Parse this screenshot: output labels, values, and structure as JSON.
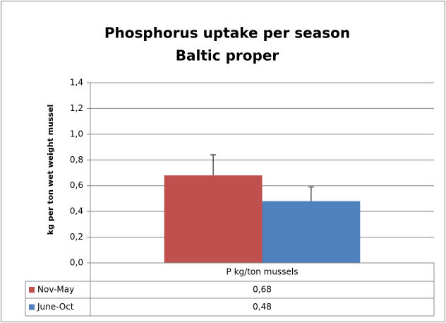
{
  "chart_data": {
    "type": "bar",
    "title": "Phosphorus  uptake per season",
    "subtitle": "Baltic proper",
    "y_label": "kg per ton wet weight mussel",
    "categories": [
      "P kg/ton mussels"
    ],
    "series": [
      {
        "name": "Nov-May",
        "color": "#c0504d",
        "values": [
          0.68
        ],
        "value_labels": [
          "0,68"
        ],
        "errors": [
          0.16
        ]
      },
      {
        "name": "June-Oct",
        "color": "#4f81bd",
        "values": [
          0.48
        ],
        "value_labels": [
          "0,48"
        ],
        "errors": [
          0.11
        ]
      }
    ],
    "ylim": [
      0,
      1.4
    ],
    "yticks": [
      {
        "value": 0,
        "label": "0,0"
      },
      {
        "value": 0.2,
        "label": "0,2"
      },
      {
        "value": 0.4,
        "label": "0,4"
      },
      {
        "value": 0.6,
        "label": "0,6"
      },
      {
        "value": 0.8,
        "label": "0,8"
      },
      {
        "value": 1.0,
        "label": "1,0"
      },
      {
        "value": 1.2,
        "label": "1,2"
      },
      {
        "value": 1.4,
        "label": "1,4"
      }
    ],
    "grid": true
  }
}
